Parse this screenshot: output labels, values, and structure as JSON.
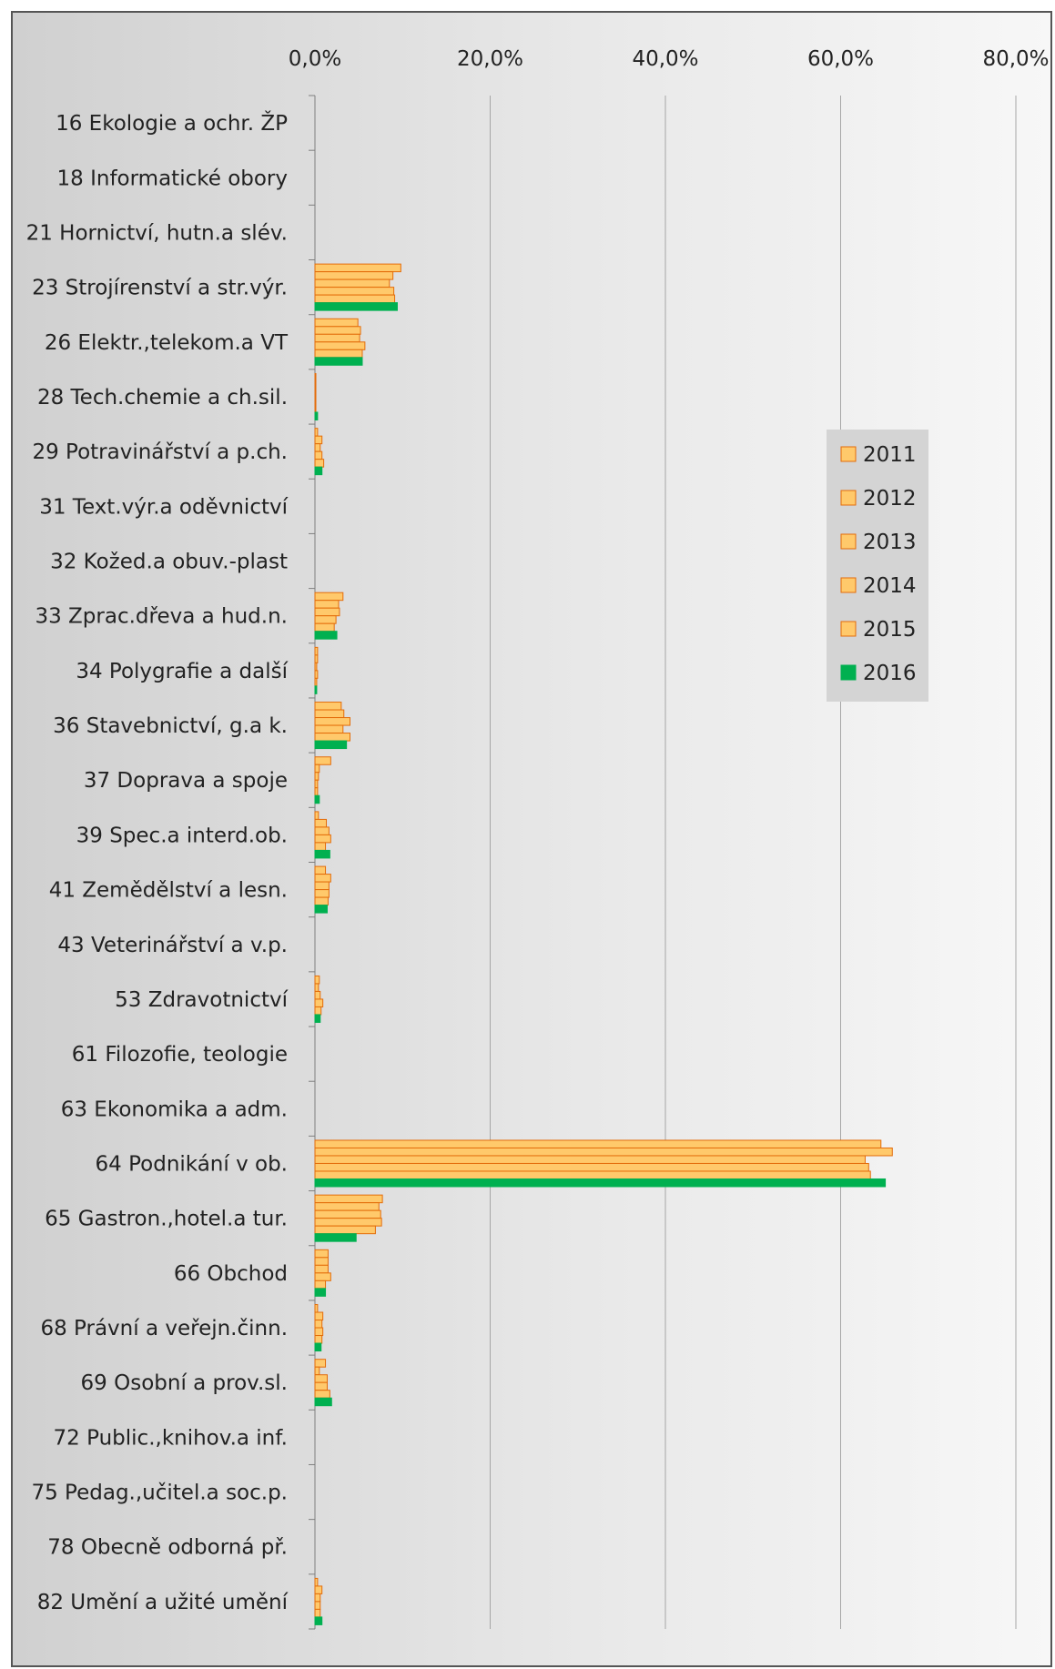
{
  "chart_data": {
    "type": "bar",
    "orientation": "horizontal",
    "title": "",
    "xlabel": "",
    "ylabel": "",
    "xlim": [
      0,
      80
    ],
    "x_ticks": [
      "0,0%",
      "20,0%",
      "40,0%",
      "60,0%",
      "80,0%"
    ],
    "x_axis_position": "top",
    "grid": true,
    "legend_position": "right",
    "categories": [
      "16 Ekologie a ochr. ŽP",
      "18 Informatické obory",
      "21 Hornictví, hutn.a slév.",
      "23 Strojírenství a str.výr.",
      "26 Elektr.,telekom.a VT",
      "28 Tech.chemie a ch.sil.",
      "29 Potravinářství a p.ch.",
      "31 Text.výr.a oděvnictví",
      "32 Kožed.a obuv.-plast",
      "33 Zprac.dřeva a hud.n.",
      "34 Polygrafie a další",
      "36 Stavebnictví, g.a k.",
      "37 Doprava a spoje",
      "39 Spec.a interd.ob.",
      "41 Zemědělství a lesn.",
      "43 Veterinářství a v.p.",
      "53 Zdravotnictví",
      "61 Filozofie, teologie",
      "63 Ekonomika a adm.",
      "64 Podnikání v ob.",
      "65 Gastron.,hotel.a tur.",
      "66 Obchod",
      "68 Právní a veřejn.činn.",
      "69 Osobní a prov.sl.",
      "72 Public.,knihov.a inf.",
      "75 Pedag.,učitel.a soc.p.",
      "78 Obecně odborná př.",
      "82 Umění a užité umění"
    ],
    "series": [
      {
        "name": "2011",
        "color": "#FFC96B",
        "stroke": "#E36C0A",
        "values": [
          0,
          0,
          0,
          9.8,
          4.9,
          0.1,
          0.3,
          0,
          0,
          3.2,
          0.3,
          3.0,
          1.8,
          0.4,
          1.2,
          0,
          0.5,
          0,
          0,
          64.6,
          7.7,
          1.5,
          0.3,
          1.2,
          0,
          0,
          0,
          0.3
        ]
      },
      {
        "name": "2012",
        "color": "#FFC96B",
        "stroke": "#E36C0A",
        "values": [
          0,
          0,
          0,
          8.9,
          5.2,
          0.1,
          0.8,
          0,
          0,
          2.7,
          0.3,
          3.3,
          0.5,
          1.3,
          1.8,
          0,
          0.4,
          0,
          0,
          65.9,
          7.3,
          1.5,
          0.9,
          0.5,
          0,
          0,
          0,
          0.8
        ]
      },
      {
        "name": "2013",
        "color": "#FFC96B",
        "stroke": "#E36C0A",
        "values": [
          0,
          0,
          0,
          8.5,
          5.1,
          0.1,
          0.6,
          0,
          0,
          2.8,
          0.2,
          4.0,
          0.4,
          1.6,
          1.6,
          0,
          0.6,
          0,
          0,
          62.8,
          7.5,
          1.5,
          0.8,
          1.4,
          0,
          0,
          0,
          0.6
        ]
      },
      {
        "name": "2014",
        "color": "#FFC96B",
        "stroke": "#E36C0A",
        "values": [
          0,
          0,
          0,
          9.0,
          5.7,
          0.1,
          0.8,
          0,
          0,
          2.4,
          0.3,
          3.2,
          0.3,
          1.8,
          1.6,
          0,
          0.9,
          0,
          0,
          63.2,
          7.6,
          1.8,
          0.9,
          1.4,
          0,
          0,
          0,
          0.6
        ]
      },
      {
        "name": "2015",
        "color": "#FFC96B",
        "stroke": "#E36C0A",
        "values": [
          0,
          0,
          0,
          9.1,
          5.4,
          0.1,
          1.0,
          0,
          0,
          2.2,
          0.2,
          4.0,
          0.3,
          1.2,
          1.5,
          0,
          0.7,
          0,
          0,
          63.4,
          6.9,
          1.2,
          0.8,
          1.7,
          0,
          0,
          0,
          0.6
        ]
      },
      {
        "name": "2016",
        "color": "#00B050",
        "stroke": "#00B050",
        "values": [
          0,
          0,
          0,
          9.4,
          5.4,
          0.3,
          0.8,
          0,
          0,
          2.5,
          0.2,
          3.6,
          0.5,
          1.7,
          1.4,
          0,
          0.6,
          0,
          0,
          65.1,
          4.7,
          1.2,
          0.7,
          1.9,
          0,
          0,
          0,
          0.8
        ]
      }
    ]
  }
}
